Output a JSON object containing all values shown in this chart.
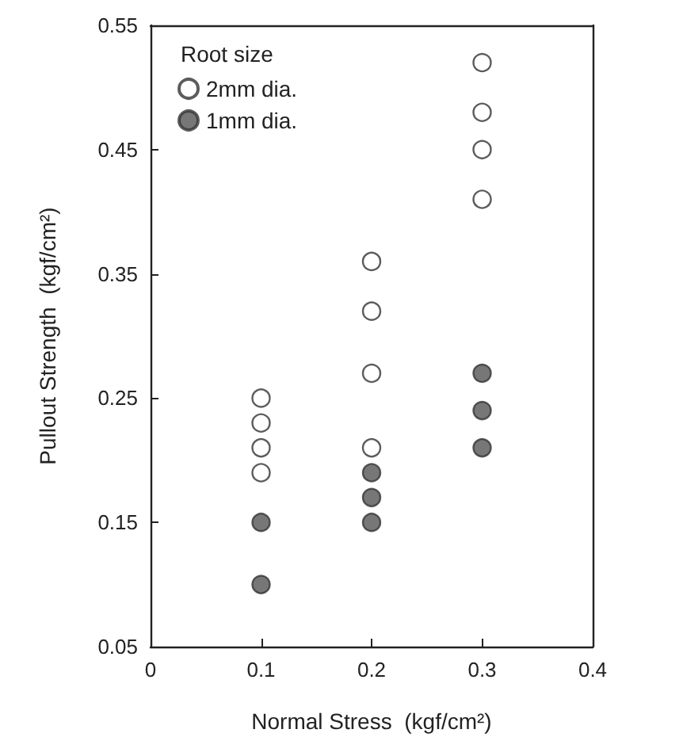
{
  "chart_data": {
    "type": "scatter",
    "xlabel": "Normal Stress  (kgf/cm²)",
    "ylabel": "Pullout Strength  (kgf/cm²)",
    "legend_title": "Root size",
    "legend": "top left",
    "marker": "circle",
    "grid": false,
    "xlim": [
      0,
      0.4
    ],
    "xticks": [
      0,
      0.1,
      0.2,
      0.3,
      0.4
    ],
    "ylim": [
      0.05,
      0.55
    ],
    "yticks": [
      0.05,
      0.15,
      0.25,
      0.35,
      0.45,
      0.55
    ],
    "series": [
      {
        "name": "2mm dia.",
        "color": "#ffffff",
        "x": [
          0.1,
          0.1,
          0.1,
          0.1,
          0.2,
          0.2,
          0.2,
          0.2,
          0.3,
          0.3,
          0.3,
          0.3
        ],
        "values": [
          0.25,
          0.23,
          0.21,
          0.19,
          0.36,
          0.32,
          0.27,
          0.21,
          0.52,
          0.48,
          0.45,
          0.41
        ]
      },
      {
        "name": "1mm dia.",
        "color": "#555555",
        "x": [
          0.1,
          0.1,
          0.2,
          0.2,
          0.2,
          0.3,
          0.3,
          0.3
        ],
        "values": [
          0.15,
          0.1,
          0.19,
          0.17,
          0.15,
          0.27,
          0.24,
          0.21
        ]
      }
    ]
  }
}
